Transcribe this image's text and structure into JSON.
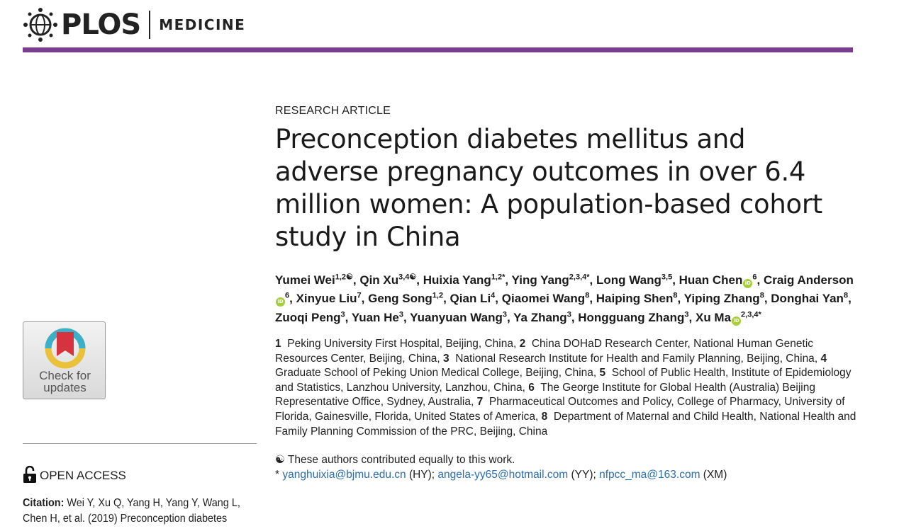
{
  "header": {
    "logo_text": "PLOS",
    "journal": "MEDICINE"
  },
  "check_updates": {
    "line1": "Check for",
    "line2": "updates"
  },
  "open_access": {
    "label": "OPEN ACCESS"
  },
  "citation": {
    "label": "Citation:",
    "text": " Wei Y, Xu Q, Yang H, Yang Y, Wang L, Chen H, et al. (2019) Preconception diabetes"
  },
  "article": {
    "type": "RESEARCH ARTICLE",
    "title": "Preconception diabetes mellitus and adverse pregnancy outcomes in over 6.4 million women: A population-based cohort study in China"
  },
  "authors": [
    {
      "name": "Yumei Wei",
      "sup": "1,2",
      "mark": "☯",
      "orcid": false,
      "sep": ", "
    },
    {
      "name": "Qin Xu",
      "sup": "3,4",
      "mark": "☯",
      "orcid": false,
      "sep": ", "
    },
    {
      "name": "Huixia Yang",
      "sup": "1,2",
      "mark": "*",
      "orcid": false,
      "sep": ", "
    },
    {
      "name": "Ying Yang",
      "sup": "2,3,4",
      "mark": "*",
      "orcid": false,
      "sep": ", "
    },
    {
      "name": "Long Wang",
      "sup": "3,5",
      "mark": "",
      "orcid": false,
      "sep": ", "
    },
    {
      "name": "Huan Chen",
      "sup": "6",
      "mark": "",
      "orcid": true,
      "sep": ", "
    },
    {
      "name": "Craig Anderson",
      "sup": "6",
      "mark": "",
      "orcid": true,
      "sep": ", "
    },
    {
      "name": "Xinyue Liu",
      "sup": "7",
      "mark": "",
      "orcid": false,
      "sep": ", "
    },
    {
      "name": "Geng Song",
      "sup": "1,2",
      "mark": "",
      "orcid": false,
      "sep": ", "
    },
    {
      "name": "Qian Li",
      "sup": "4",
      "mark": "",
      "orcid": false,
      "sep": ", "
    },
    {
      "name": "Qiaomei Wang",
      "sup": "8",
      "mark": "",
      "orcid": false,
      "sep": ", "
    },
    {
      "name": "Haiping Shen",
      "sup": "8",
      "mark": "",
      "orcid": false,
      "sep": ", "
    },
    {
      "name": "Yiping Zhang",
      "sup": "8",
      "mark": "",
      "orcid": false,
      "sep": ", "
    },
    {
      "name": "Donghai Yan",
      "sup": "8",
      "mark": "",
      "orcid": false,
      "sep": ", "
    },
    {
      "name": "Zuoqi Peng",
      "sup": "3",
      "mark": "",
      "orcid": false,
      "sep": ", "
    },
    {
      "name": "Yuan He",
      "sup": "3",
      "mark": "",
      "orcid": false,
      "sep": ", "
    },
    {
      "name": "Yuanyuan Wang",
      "sup": "3",
      "mark": "",
      "orcid": false,
      "sep": ", "
    },
    {
      "name": "Ya Zhang",
      "sup": "3",
      "mark": "",
      "orcid": false,
      "sep": ", "
    },
    {
      "name": "Hongguang Zhang",
      "sup": "3",
      "mark": "",
      "orcid": false,
      "sep": ", "
    },
    {
      "name": "Xu Ma",
      "sup": "2,3,4",
      "mark": "*",
      "orcid": true,
      "sep": ""
    }
  ],
  "affiliations": [
    {
      "num": "1",
      "text": "Peking University First Hospital, Beijing, China"
    },
    {
      "num": "2",
      "text": "China DOHaD Research Center, National Human Genetic Resources Center, Beijing, China"
    },
    {
      "num": "3",
      "text": "National Research Institute for Health and Family Planning, Beijing, China"
    },
    {
      "num": "4",
      "text": "Graduate School of Peking Union Medical College, Beijing, China"
    },
    {
      "num": "5",
      "text": "School of Public Health, Institute of Epidemiology and Statistics, Lanzhou University, Lanzhou, China"
    },
    {
      "num": "6",
      "text": "The George Institute for Global Health (Australia) Beijing Representative Office, Sydney, Australia"
    },
    {
      "num": "7",
      "text": "Pharmaceutical Outcomes and Policy, College of Pharmacy, University of Florida, Gainesville, Florida, United States of America"
    },
    {
      "num": "8",
      "text": "Department of Maternal and Child Health, National Health and Family Planning Commission of the PRC, Beijing, China"
    }
  ],
  "notes": {
    "equal_symbol": "☯",
    "equal_text": " These authors contributed equally to this work.",
    "corr_symbol": "* ",
    "contacts": [
      {
        "email": "yanghuixia@bjmu.edu.cn",
        "initials": " (HY); "
      },
      {
        "email": "angela-yy65@hotmail.com",
        "initials": " (YY); "
      },
      {
        "email": "nfpcc_ma@163.com",
        "initials": " (XM)"
      }
    ]
  }
}
